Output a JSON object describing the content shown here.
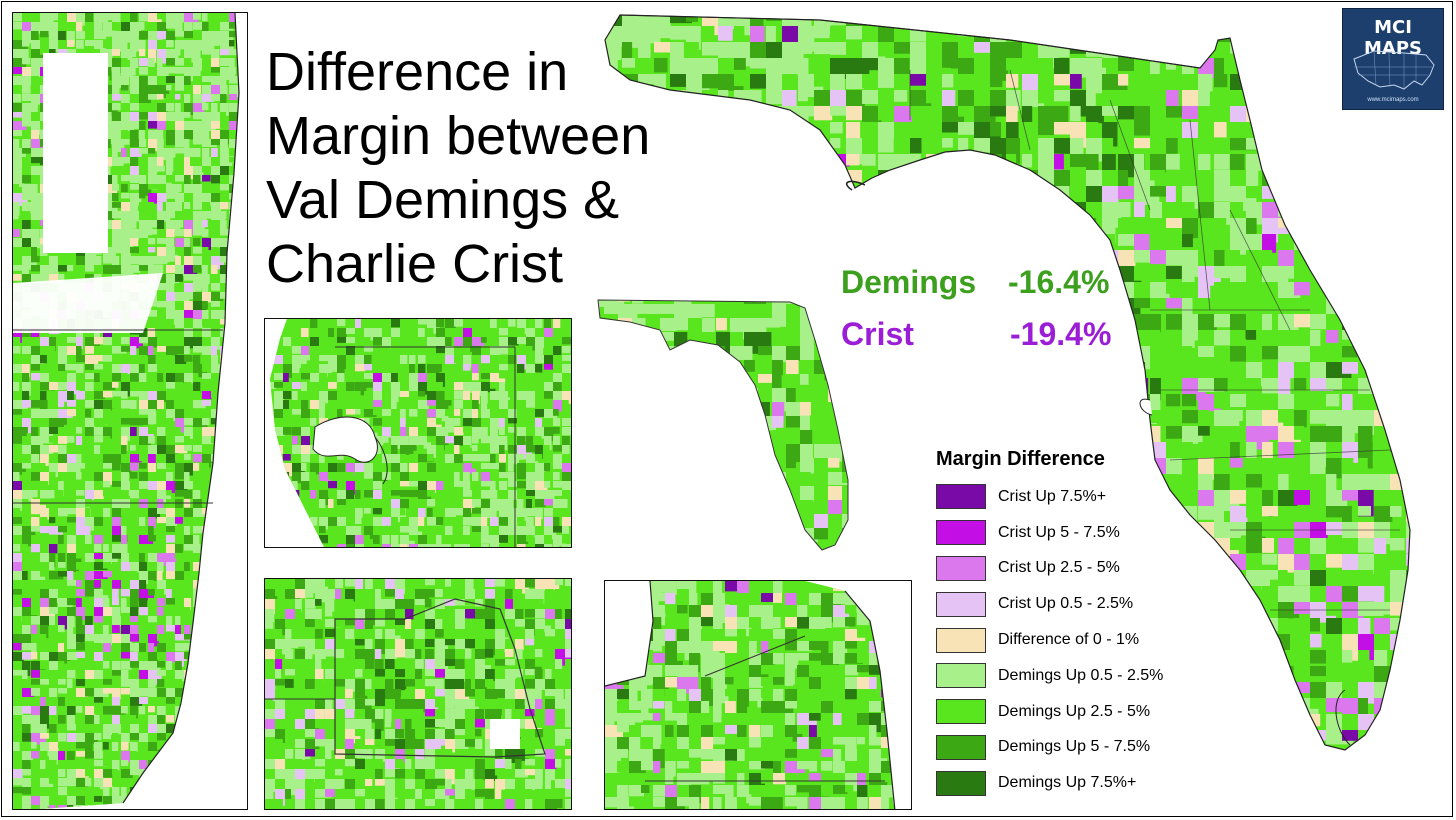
{
  "title": "Difference in\nMargin between\nVal Demings &\nCharlie Crist",
  "stats": {
    "demings_label": "Demings",
    "demings_value": "-16.4%",
    "crist_label": "Crist",
    "crist_value": "-19.4%"
  },
  "logo": {
    "text": "MCI MAPS",
    "url": "www.mcimaps.com"
  },
  "colors": {
    "demings_text": "#3ca01e",
    "crist_text": "#9b1ed6",
    "water": "#ffffff",
    "border": "#333333"
  },
  "legend": {
    "title": "Margin Difference",
    "items": [
      {
        "label": "Crist Up 7.5%+",
        "color": "#7a0aa8"
      },
      {
        "label": "Crist Up 5 - 7.5%",
        "color": "#c40ee6"
      },
      {
        "label": "Crist Up 2.5 - 5%",
        "color": "#dc78ee"
      },
      {
        "label": "Crist Up 0.5 - 2.5%",
        "color": "#e6c3f5"
      },
      {
        "label": "Difference of 0 - 1%",
        "color": "#f7e3b5"
      },
      {
        "label": "Demings Up 0.5 - 2.5%",
        "color": "#a8f08a"
      },
      {
        "label": "Demings Up 2.5 - 5%",
        "color": "#5ae61e"
      },
      {
        "label": "Demings Up 5 - 7.5%",
        "color": "#3ca814"
      },
      {
        "label": "Demings Up 7.5%+",
        "color": "#2a7a12"
      }
    ]
  },
  "map_fill_weights": [
    0.005,
    0.01,
    0.03,
    0.04,
    0.06,
    0.26,
    0.43,
    0.13,
    0.035
  ]
}
